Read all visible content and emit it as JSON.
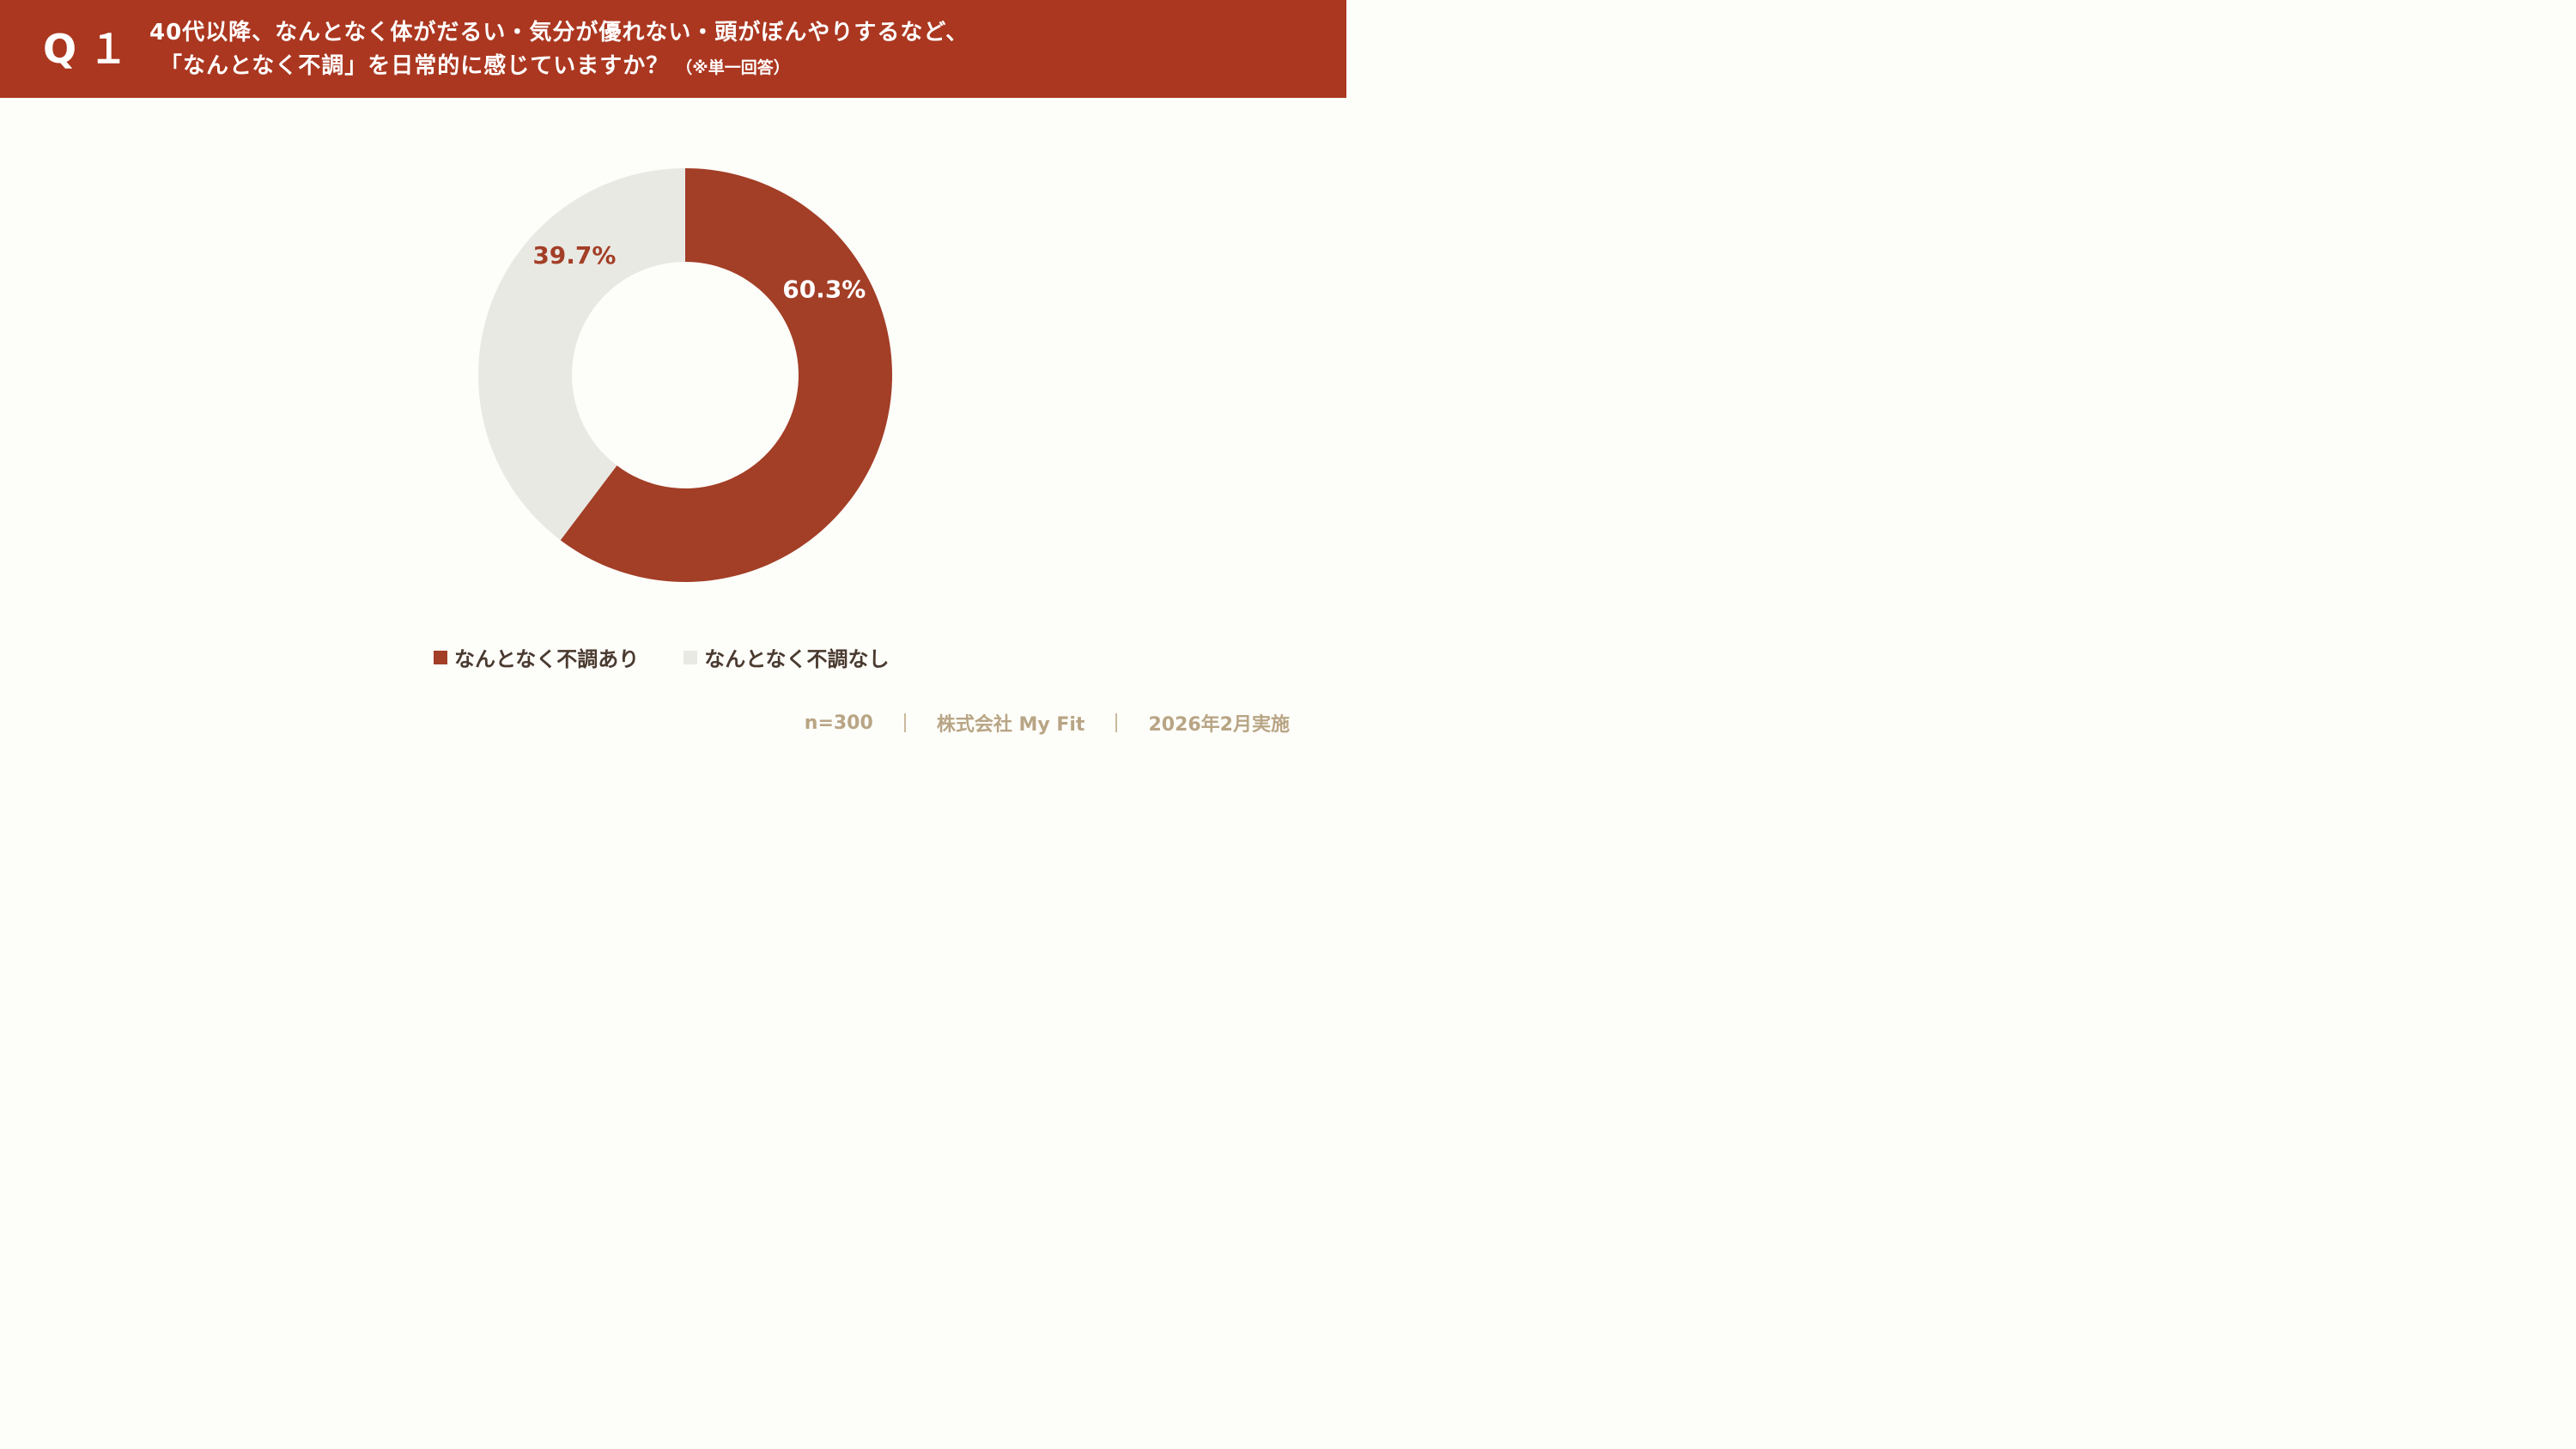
{
  "header": {
    "q_label": "Q１",
    "title_line1": "40代以降、なんとなく体がだるい・気分が優れない・頭がぼんやりするなど、",
    "title_line2": "「なんとなく不調」を日常的に感じていますか？",
    "note": "（※単一回答）"
  },
  "colors": {
    "header_bg": "#ab3720",
    "slice_yes": "#a33e27",
    "slice_no": "#e9e9e4",
    "label_yes_text": "#ffffff",
    "label_no_text": "#a33e27",
    "footer_text": "#b8a585"
  },
  "chart_data": {
    "type": "pie",
    "donut": true,
    "categories": [
      "なんとなく不調あり",
      "なんとなく不調なし"
    ],
    "values": [
      60.3,
      39.7
    ],
    "data_labels": [
      "60.3%",
      "39.7%"
    ],
    "legend_placement": "bottom"
  },
  "footer": {
    "n": "n=300",
    "company": "株式会社 My Fit",
    "date": "2026年2月実施"
  }
}
